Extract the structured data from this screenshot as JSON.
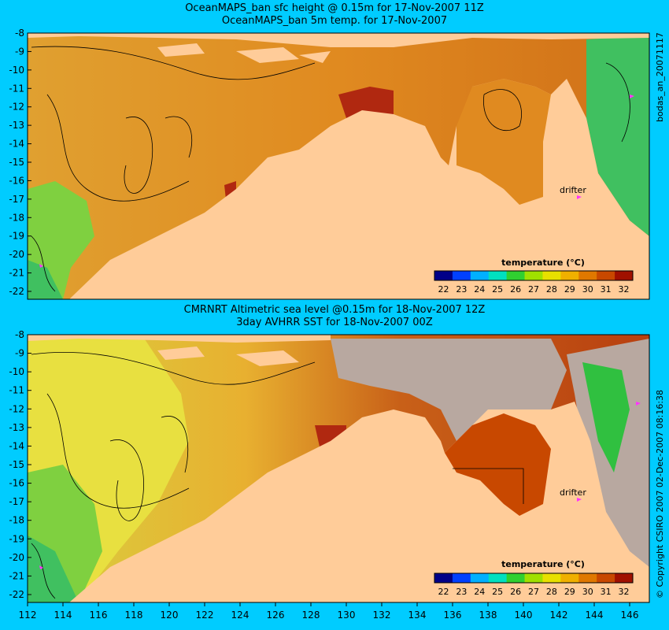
{
  "panels": [
    {
      "title1": "OceanMAPS_ban sfc height @ 0.15m for 17-Nov-2007 11Z",
      "title2": "OceanMAPS_ban 5m temp. for 17-Nov-2007",
      "side_label": "bodas_an_20071117",
      "drifter_label": "drifter",
      "colorbar_title": "temperature (°C)"
    },
    {
      "title1": "CMRNRT Altimetric sea level  @0.15m  for 18-Nov-2007 12Z",
      "title2": "3day AVHRR SST for 18-Nov-2007 00Z",
      "side_label": "© Copyright CSIRO 2007  02-Dec-2007 08:16:38",
      "drifter_label": "drifter",
      "colorbar_title": "temperature (°C)"
    }
  ],
  "axes": {
    "lat_ticks": [
      "-8",
      "-9",
      "-10",
      "-11",
      "-12",
      "-13",
      "-14",
      "-15",
      "-16",
      "-17",
      "-18",
      "-19",
      "-20",
      "-21",
      "-22"
    ],
    "lon_ticks": [
      "112",
      "114",
      "116",
      "118",
      "120",
      "122",
      "124",
      "126",
      "128",
      "130",
      "132",
      "134",
      "136",
      "138",
      "140",
      "142",
      "144",
      "146"
    ]
  },
  "colorbar": {
    "ticks": [
      "22",
      "23",
      "24",
      "25",
      "26",
      "27",
      "28",
      "29",
      "30",
      "31",
      "32"
    ],
    "colors": [
      "#000088",
      "#0040ff",
      "#00b0ff",
      "#00e0c0",
      "#30d030",
      "#a0e000",
      "#e8e000",
      "#f0b000",
      "#e07800",
      "#c84800",
      "#a01000"
    ]
  },
  "colors": {
    "background": "#00ccff",
    "land": "#ffcc99",
    "ocean_warm": "#e08a20",
    "ocean_hot": "#b02810",
    "ocean_mid": "#f0b030",
    "ocean_cool": "#7fd040",
    "cloud_gray": "#b8a8a0",
    "drifter": "#ff33ff"
  }
}
